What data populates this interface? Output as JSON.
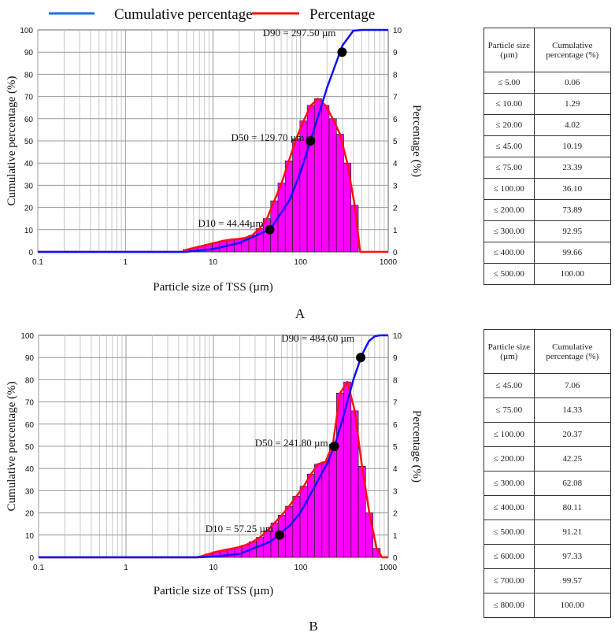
{
  "legend": {
    "cumulative": "Cumulative percentage",
    "percentage": "Percentage"
  },
  "colors": {
    "cumulative": "#1010ff",
    "percentage": "#ff1010",
    "bars": "#ff00ff"
  },
  "chart_data": [
    {
      "type": "bar+line",
      "panel": "A",
      "xlabel": "Particle size of TSS (µm)",
      "ylabel": "Cumulative percentage (%)",
      "y2label": "Percentage (%)",
      "xscale": "log",
      "xlim": [
        0.1,
        1000
      ],
      "ylim": [
        0,
        100
      ],
      "y2lim": [
        0,
        10
      ],
      "xticks": [
        "0.1",
        "1",
        "10",
        "100",
        "1000"
      ],
      "yticks": [
        "0",
        "10",
        "20",
        "30",
        "40",
        "50",
        "60",
        "70",
        "80",
        "90",
        "100"
      ],
      "y2ticks": [
        "0",
        "1",
        "2",
        "3",
        "4",
        "5",
        "6",
        "7",
        "8",
        "9",
        "10"
      ],
      "bins": {
        "x": [
          5,
          6.06,
          7.34,
          8.89,
          10.8,
          13.1,
          15.8,
          19.2,
          23.3,
          28.2,
          34.1,
          41.3,
          50.1,
          60.7,
          73.5,
          89.1,
          108,
          131,
          158,
          192,
          233,
          282,
          341,
          414
        ],
        "percentage": [
          0.1,
          0.18,
          0.26,
          0.34,
          0.42,
          0.5,
          0.55,
          0.58,
          0.63,
          0.75,
          1.05,
          1.5,
          2.3,
          3.1,
          4.1,
          5.1,
          5.9,
          6.6,
          6.9,
          6.6,
          6.0,
          5.3,
          4.0,
          2.1
        ]
      },
      "percentage_line_end": [
        [
          0.1,
          0
        ],
        [
          4.5,
          0
        ]
      ],
      "cumulative": {
        "x": [
          0.1,
          4.5,
          5,
          10,
          20,
          45,
          75,
          100,
          129.7,
          200,
          300,
          400,
          500,
          1000
        ],
        "y": [
          0,
          0,
          0.06,
          1.29,
          4.02,
          10.19,
          23.39,
          36.1,
          50,
          73.89,
          92.95,
          99.66,
          100,
          100
        ]
      },
      "markers": [
        {
          "label": "D10 = 44.44µm",
          "x": 44.44,
          "y": 10
        },
        {
          "label": "D50 = 129.70 µm",
          "x": 129.7,
          "y": 50
        },
        {
          "label": "D90 = 297.50 µm",
          "x": 297.5,
          "y": 90
        }
      ],
      "caption": "A",
      "table": {
        "headers": [
          "Particle size (µm)",
          "Cumulative percentage (%)"
        ],
        "rows": [
          [
            "≤ 5.00",
            "0.06"
          ],
          [
            "≤ 10.00",
            "1.29"
          ],
          [
            "≤ 20.00",
            "4.02"
          ],
          [
            "≤ 45.00",
            "10.19"
          ],
          [
            "≤ 75.00",
            "23.39"
          ],
          [
            "≤ 100.00",
            "36.10"
          ],
          [
            "≤ 200.00",
            "73.89"
          ],
          [
            "≤ 300.00",
            "92.95"
          ],
          [
            "≤ 400.00",
            "99.66"
          ],
          [
            "≤ 500.00",
            "100.00"
          ]
        ]
      }
    },
    {
      "type": "bar+line",
      "panel": "B",
      "xlabel": "Particle size of TSS (µm)",
      "ylabel": "Cumulative percentage (%)",
      "y2label": "Percentage (%)",
      "xscale": "log",
      "xlim": [
        0.1,
        1000
      ],
      "ylim": [
        0,
        100
      ],
      "y2lim": [
        0,
        10
      ],
      "xticks": [
        "0.1",
        "1",
        "10",
        "100",
        "1000"
      ],
      "yticks": [
        "0",
        "10",
        "20",
        "30",
        "40",
        "50",
        "60",
        "70",
        "80",
        "90",
        "100"
      ],
      "y2ticks": [
        "0",
        "1",
        "2",
        "3",
        "4",
        "5",
        "6",
        "7",
        "8",
        "9",
        "10"
      ],
      "bins": {
        "x": [
          7.34,
          8.89,
          10.8,
          13.1,
          15.8,
          19.2,
          23.3,
          28.2,
          34.1,
          41.3,
          50.1,
          60.7,
          73.5,
          89.1,
          108,
          131,
          158,
          192,
          233,
          282,
          341,
          414,
          501,
          608,
          737
        ],
        "percentage": [
          0.05,
          0.15,
          0.25,
          0.32,
          0.38,
          0.45,
          0.55,
          0.7,
          0.9,
          1.2,
          1.55,
          1.9,
          2.3,
          2.75,
          3.2,
          3.75,
          4.2,
          4.3,
          5.1,
          7.4,
          7.9,
          6.6,
          4.1,
          2.0,
          0.4
        ]
      },
      "cumulative": {
        "x": [
          0.1,
          6.5,
          10,
          20,
          45,
          75,
          100,
          200,
          241.8,
          300,
          400,
          500,
          600,
          700,
          800,
          1000
        ],
        "y": [
          0,
          0,
          0.3,
          1.5,
          7.06,
          14.33,
          20.37,
          42.25,
          50,
          62.08,
          80.11,
          91.21,
          97.33,
          99.57,
          100,
          100
        ]
      },
      "markers": [
        {
          "label": "D10 = 57.25 µm",
          "x": 57.25,
          "y": 10
        },
        {
          "label": "D50 = 241.80 µm",
          "x": 241.8,
          "y": 50
        },
        {
          "label": "D90 = 484.60 µm",
          "x": 484.6,
          "y": 90
        }
      ],
      "caption": "B",
      "table": {
        "headers": [
          "Particle size (µm)",
          "Cumulative percentage (%)"
        ],
        "rows": [
          [
            "≤ 45.00",
            "7.06"
          ],
          [
            "≤ 75.00",
            "14.33"
          ],
          [
            "≤ 100.00",
            "20.37"
          ],
          [
            "≤ 200.00",
            "42.25"
          ],
          [
            "≤ 300.00",
            "62.08"
          ],
          [
            "≤ 400.00",
            "80.11"
          ],
          [
            "≤ 500.00",
            "91.21"
          ],
          [
            "≤ 600.00",
            "97.33"
          ],
          [
            "≤ 700.00",
            "99.57"
          ],
          [
            "≤ 800.00",
            "100.00"
          ]
        ]
      }
    }
  ]
}
